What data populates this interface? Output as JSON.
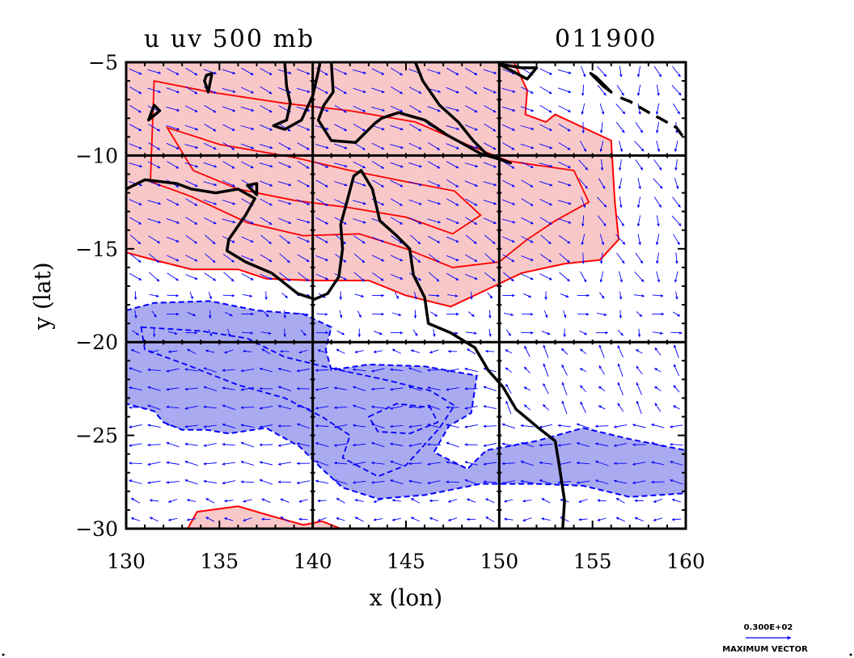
{
  "chart_data": {
    "type": "contour",
    "title": "u uv 500 mb",
    "subtitle": "011900",
    "xlabel": "x (lon)",
    "ylabel": "y (lat)",
    "xlim": [
      130,
      160
    ],
    "ylim": [
      -30,
      -5
    ],
    "x_ticks": [
      130,
      135,
      140,
      145,
      150,
      155,
      160
    ],
    "y_ticks": [
      -5,
      -10,
      -15,
      -20,
      -25,
      -30
    ],
    "x_tick_labels": [
      "130",
      "135",
      "140",
      "145",
      "150",
      "155",
      "160"
    ],
    "y_tick_labels": [
      "−5",
      "−10",
      "−15",
      "−20",
      "−25",
      "−30"
    ],
    "grid_x": [
      140,
      150
    ],
    "grid_y": [
      -10,
      -20
    ],
    "grid": true,
    "positive_u_color": "#f8c8c8",
    "positive_u_line": "#ff0000",
    "negative_u_color": "#aaaaf0",
    "negative_u_line": "#0000ff",
    "coast_color": "#000000",
    "vector_color": "#0000ff",
    "positive_regions": [
      [
        [
          130,
          -5
        ],
        [
          150.8,
          -5
        ],
        [
          151.5,
          -6.5
        ],
        [
          151.4,
          -7.8
        ],
        [
          152.5,
          -8.2
        ],
        [
          153,
          -7.8
        ],
        [
          156,
          -9.2
        ],
        [
          156.2,
          -12.5
        ],
        [
          156.4,
          -14.5
        ],
        [
          155.4,
          -15.6
        ],
        [
          153.5,
          -15.8
        ],
        [
          151.2,
          -16.3
        ],
        [
          149.3,
          -17.2
        ],
        [
          147.4,
          -18.1
        ],
        [
          145,
          -17.5
        ],
        [
          143,
          -16.7
        ],
        [
          140,
          -16.7
        ],
        [
          137.5,
          -16.6
        ],
        [
          136,
          -16.1
        ],
        [
          133.5,
          -16.1
        ],
        [
          131.5,
          -15.6
        ],
        [
          130,
          -15.2
        ]
      ],
      [
        [
          133.3,
          -30
        ],
        [
          133.8,
          -29.1
        ],
        [
          136,
          -28.8
        ],
        [
          137.7,
          -29.3
        ],
        [
          139.5,
          -29.8
        ],
        [
          140.5,
          -29.6
        ],
        [
          141.5,
          -30
        ]
      ]
    ],
    "positive_inner_contours": [
      [
        [
          131.5,
          -6
        ],
        [
          134.5,
          -6.6
        ],
        [
          138.5,
          -7.2
        ],
        [
          142,
          -7.6
        ],
        [
          145.5,
          -8.2
        ],
        [
          148.5,
          -9.5
        ],
        [
          150.5,
          -10.3
        ],
        [
          154,
          -10.8
        ],
        [
          154.8,
          -12.5
        ],
        [
          153,
          -13.5
        ],
        [
          151.5,
          -14.5
        ],
        [
          150,
          -15.7
        ],
        [
          147.5,
          -16
        ],
        [
          145,
          -15
        ],
        [
          142.5,
          -14.2
        ],
        [
          139.5,
          -14.3
        ],
        [
          136.5,
          -13.6
        ],
        [
          133.5,
          -12.2
        ],
        [
          131.3,
          -11.4
        ]
      ],
      [
        [
          132.2,
          -8.5
        ],
        [
          135,
          -9.4
        ],
        [
          139,
          -10.1
        ],
        [
          142,
          -10.8
        ],
        [
          145,
          -11.4
        ],
        [
          147.6,
          -11.9
        ],
        [
          149,
          -13.2
        ],
        [
          147.5,
          -14.2
        ],
        [
          145,
          -13.3
        ],
        [
          142,
          -12.8
        ],
        [
          139,
          -12.4
        ],
        [
          136,
          -11.8
        ],
        [
          133.6,
          -10.8
        ]
      ]
    ],
    "negative_regions": [
      [
        [
          130,
          -18.3
        ],
        [
          131.5,
          -17.9
        ],
        [
          134.5,
          -17.8
        ],
        [
          137,
          -18.3
        ],
        [
          139.5,
          -18.5
        ],
        [
          141,
          -19.2
        ],
        [
          140.7,
          -20.4
        ],
        [
          141,
          -21.5
        ],
        [
          143,
          -21.2
        ],
        [
          146,
          -21.3
        ],
        [
          148.8,
          -21.8
        ],
        [
          148.5,
          -23.8
        ],
        [
          147.3,
          -24.5
        ],
        [
          146.5,
          -25.9
        ],
        [
          148.3,
          -26.8
        ],
        [
          149.3,
          -25.8
        ],
        [
          152,
          -25.3
        ],
        [
          154.5,
          -24.6
        ],
        [
          157,
          -25.2
        ],
        [
          160,
          -25.8
        ],
        [
          160,
          -28.1
        ],
        [
          157,
          -28.3
        ],
        [
          154.5,
          -27.7
        ],
        [
          152,
          -27.6
        ],
        [
          149,
          -27.6
        ],
        [
          146,
          -28.2
        ],
        [
          143.5,
          -28.4
        ],
        [
          141.6,
          -27.8
        ],
        [
          140.5,
          -26.8
        ],
        [
          139.3,
          -25.6
        ],
        [
          137.5,
          -24.6
        ],
        [
          135.5,
          -24.9
        ],
        [
          134.3,
          -24.7
        ],
        [
          133,
          -24.7
        ],
        [
          132,
          -24.3
        ],
        [
          131.5,
          -23.7
        ],
        [
          130,
          -23.3
        ]
      ]
    ],
    "negative_inner_contours": [
      [
        [
          130.8,
          -19.2
        ],
        [
          134,
          -19.4
        ],
        [
          136.5,
          -19.8
        ],
        [
          138.5,
          -20.8
        ],
        [
          141,
          -21.4
        ],
        [
          143.8,
          -22
        ],
        [
          146.3,
          -22.6
        ],
        [
          147.6,
          -23.4
        ],
        [
          146.8,
          -24.6
        ],
        [
          145,
          -26.6
        ],
        [
          143.5,
          -27.2
        ],
        [
          141.6,
          -26.2
        ],
        [
          142,
          -25
        ],
        [
          140.5,
          -24
        ],
        [
          138.5,
          -23
        ],
        [
          136,
          -22.3
        ],
        [
          133.2,
          -21.2
        ],
        [
          131,
          -20.4
        ]
      ],
      [
        [
          143,
          -24
        ],
        [
          144.5,
          -23.3
        ],
        [
          146.3,
          -23.5
        ],
        [
          146.7,
          -24.3
        ],
        [
          145.2,
          -24.9
        ],
        [
          143.5,
          -24.8
        ]
      ]
    ],
    "coastlines": [
      [
        [
          130,
          -11.8
        ],
        [
          131,
          -11.3
        ],
        [
          132.7,
          -11.5
        ],
        [
          133.5,
          -11.8
        ],
        [
          134.8,
          -12
        ],
        [
          136,
          -11.8
        ],
        [
          136.9,
          -12.3
        ],
        [
          136.4,
          -13.2
        ],
        [
          135.5,
          -14.5
        ],
        [
          135.4,
          -15.1
        ],
        [
          136.4,
          -15.7
        ],
        [
          137.8,
          -16.3
        ],
        [
          139.2,
          -17.4
        ],
        [
          140.1,
          -17.7
        ],
        [
          140.8,
          -17.4
        ],
        [
          141.4,
          -16.5
        ],
        [
          141.6,
          -15
        ],
        [
          141.5,
          -13.7
        ],
        [
          141.8,
          -12.6
        ],
        [
          142.2,
          -11.1
        ],
        [
          142.6,
          -10.8
        ],
        [
          143.2,
          -11.8
        ],
        [
          143.6,
          -13.5
        ],
        [
          144.5,
          -14.3
        ],
        [
          145.2,
          -15
        ],
        [
          145.4,
          -16.4
        ],
        [
          146,
          -17.6
        ],
        [
          146.2,
          -19
        ],
        [
          147.4,
          -19.5
        ],
        [
          148.7,
          -20.3
        ],
        [
          149.4,
          -21.5
        ],
        [
          150.2,
          -22.4
        ],
        [
          150.9,
          -23.6
        ],
        [
          152.1,
          -24.6
        ],
        [
          153,
          -25.3
        ],
        [
          153.2,
          -26.5
        ],
        [
          153.5,
          -28.5
        ],
        [
          153.4,
          -30
        ]
      ],
      [
        [
          141,
          -5
        ],
        [
          141.1,
          -6.6
        ],
        [
          140.6,
          -7.3
        ],
        [
          140.3,
          -8.1
        ],
        [
          141,
          -9.2
        ],
        [
          142.3,
          -9.3
        ],
        [
          143.3,
          -8.3
        ],
        [
          143.7,
          -8
        ],
        [
          144.6,
          -7.7
        ],
        [
          146,
          -8.1
        ],
        [
          147.2,
          -8.9
        ],
        [
          148.3,
          -9.5
        ],
        [
          149,
          -9.9
        ],
        [
          150,
          -10.2
        ],
        [
          150.6,
          -10.4
        ],
        [
          149.3,
          -9.9
        ],
        [
          148.6,
          -9.2
        ],
        [
          147.8,
          -8.2
        ],
        [
          146.8,
          -7.3
        ],
        [
          145.9,
          -6
        ],
        [
          145.5,
          -5
        ]
      ],
      [
        [
          138.5,
          -5
        ],
        [
          138.6,
          -6.3
        ],
        [
          138.8,
          -7.2
        ],
        [
          138.6,
          -8.1
        ],
        [
          137.9,
          -8.4
        ],
        [
          138.5,
          -8.6
        ],
        [
          139.4,
          -8.1
        ],
        [
          140,
          -6.8
        ],
        [
          140.3,
          -5.5
        ],
        [
          140.4,
          -5
        ]
      ],
      [
        [
          134.2,
          -6
        ],
        [
          134.4,
          -6.6
        ],
        [
          134.6,
          -5.6
        ],
        [
          134.3,
          -5.7
        ]
      ],
      [
        [
          131.5,
          -7.3
        ],
        [
          131.2,
          -8.1
        ],
        [
          131.8,
          -7.6
        ]
      ],
      [
        [
          150,
          -5.1
        ],
        [
          151.5,
          -5.9
        ],
        [
          152,
          -5.3
        ],
        [
          151.2,
          -5.3
        ]
      ],
      [
        [
          154.9,
          -5.6
        ],
        [
          155.6,
          -6.3
        ],
        [
          156,
          -6.6
        ],
        [
          155.2,
          -5.8
        ]
      ],
      [
        [
          136.5,
          -11.6
        ],
        [
          137,
          -12.1
        ],
        [
          137,
          -11.5
        ]
      ]
    ],
    "dashed_coast": [
      [
        [
          156.5,
          -6.9
        ],
        [
          157,
          -7.1
        ],
        [
          158.2,
          -7.8
        ],
        [
          158.6,
          -8
        ],
        [
          159.5,
          -8.5
        ],
        [
          160,
          -9.2
        ]
      ]
    ],
    "wind_vectors": "unit field sampled every 1 degree: north of ~18S easterly-poleward westerlies (u>0), south of ~18S weak easterlies (u<0)",
    "reference_vector": {
      "value_label": "0.300E+02",
      "caption": "MAXIMUM VECTOR"
    }
  }
}
